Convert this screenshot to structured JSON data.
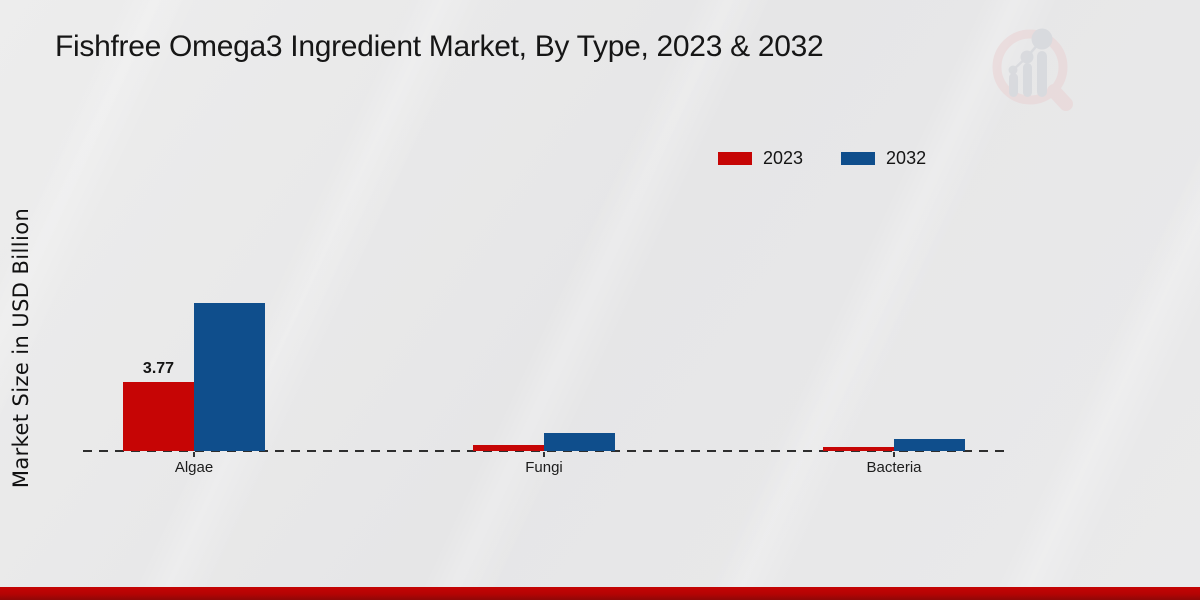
{
  "page": {
    "title": "Fishfree Omega3 Ingredient Market, By Type, 2023 & 2032",
    "logo": "market-research-future-watermark"
  },
  "colors": {
    "series_2023": "#c60505",
    "series_2032": "#0f4e8c",
    "footer_accent": "#b30505",
    "baseline_dash": "#2e2e2e",
    "text": "#161616",
    "background": "#e9e9ea"
  },
  "chart_data": {
    "type": "bar",
    "title": "Fishfree Omega3 Ingredient Market, By Type, 2023 & 2032",
    "ylabel": "Market Size in USD Billion",
    "xlabel": "",
    "categories": [
      "Algae",
      "Fungi",
      "Bacteria"
    ],
    "series": [
      {
        "name": "2023",
        "color": "#c60505",
        "values": [
          3.77,
          0.33,
          0.2
        ],
        "labels": [
          "3.77",
          "",
          ""
        ]
      },
      {
        "name": "2032",
        "color": "#0f4e8c",
        "values": [
          8.1,
          1.0,
          0.65
        ],
        "labels": [
          "",
          "",
          ""
        ]
      }
    ],
    "ylim": [
      0,
      9
    ],
    "grid": false,
    "baseline_style": "dashed",
    "legend_position": "top-right",
    "units": "USD Billion"
  }
}
